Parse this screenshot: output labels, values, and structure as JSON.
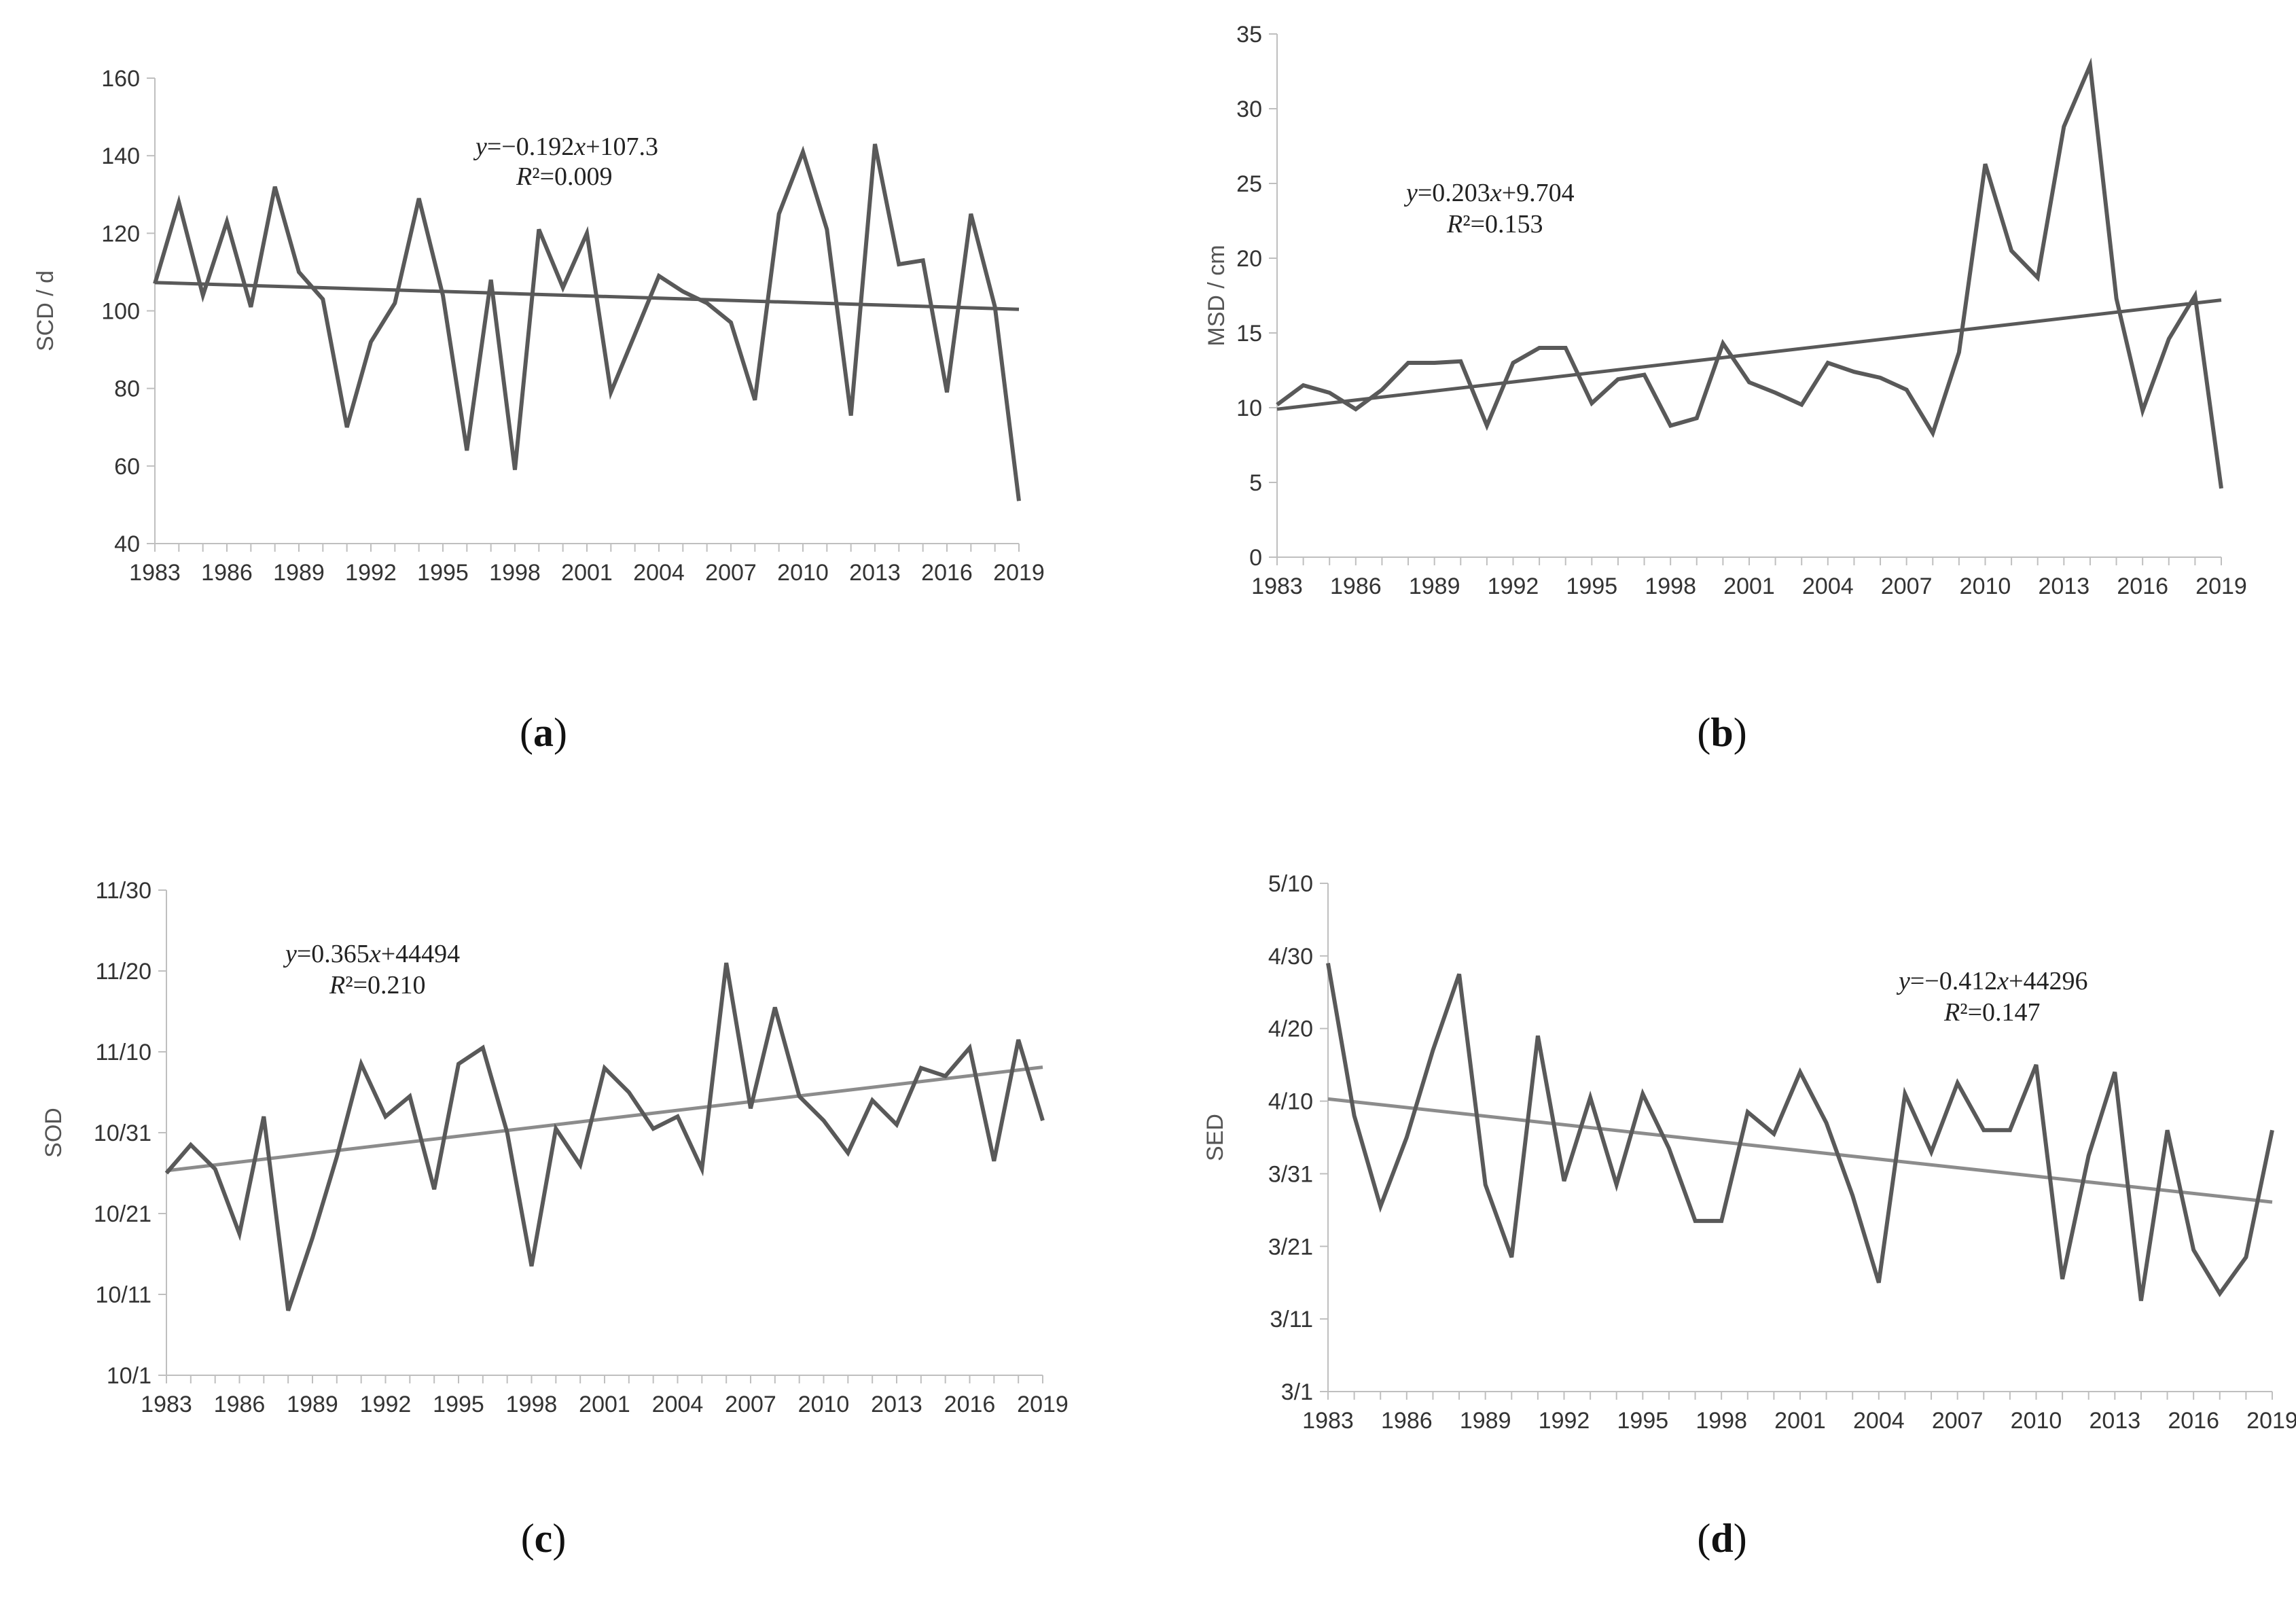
{
  "panels": [
    {
      "id": "a",
      "caption": "a",
      "chart_data": {
        "type": "line",
        "title": "",
        "xlabel": "",
        "ylabel": "SCD / d",
        "ylim": [
          40,
          160
        ],
        "yticks": [
          "40",
          "60",
          "80",
          "100",
          "120",
          "140",
          "160"
        ],
        "xticks": [
          "1983",
          "1986",
          "1989",
          "1992",
          "1995",
          "1998",
          "2001",
          "2004",
          "2007",
          "2010",
          "2013",
          "2016",
          "2019"
        ],
        "x": [
          1983,
          1984,
          1985,
          1986,
          1987,
          1988,
          1989,
          1990,
          1991,
          1992,
          1993,
          1994,
          1995,
          1996,
          1997,
          1998,
          1999,
          2000,
          2001,
          2002,
          2003,
          2004,
          2005,
          2006,
          2007,
          2008,
          2009,
          2010,
          2011,
          2012,
          2013,
          2014,
          2015,
          2016,
          2017,
          2018,
          2019
        ],
        "series": [
          {
            "name": "SCD",
            "color": "#595959",
            "values": [
              107,
              128,
              104,
              123,
              101,
              132,
              110,
              103,
              70,
              92,
              102,
              129,
              104,
              64,
              108,
              59,
              121,
              106,
              120,
              79,
              94,
              109,
              105,
              102,
              97,
              77,
              125,
              141,
              121,
              73,
              143,
              112,
              113,
              79,
              125,
              101,
              51
            ]
          },
          {
            "name": "trend",
            "color": "#595959",
            "start": 107.3,
            "end": 100.4
          }
        ],
        "equation": {
          "y": "y",
          "rhs": "=−0.192",
          "x": "x",
          "tail": "+107.3",
          "r": "R",
          "r2": "²=0.009"
        }
      }
    },
    {
      "id": "b",
      "caption": "b",
      "chart_data": {
        "type": "line",
        "title": "",
        "xlabel": "",
        "ylabel": "MSD / cm",
        "ylim": [
          0,
          35
        ],
        "yticks": [
          "0",
          "5",
          "10",
          "15",
          "20",
          "25",
          "30",
          "35"
        ],
        "xticks": [
          "1983",
          "1986",
          "1989",
          "1992",
          "1995",
          "1998",
          "2001",
          "2004",
          "2007",
          "2010",
          "2013",
          "2016",
          "2019"
        ],
        "x": [
          1983,
          1984,
          1985,
          1986,
          1987,
          1988,
          1989,
          1990,
          1991,
          1992,
          1993,
          1994,
          1995,
          1996,
          1997,
          1998,
          1999,
          2000,
          2001,
          2002,
          2003,
          2004,
          2005,
          2006,
          2007,
          2008,
          2009,
          2010,
          2011,
          2012,
          2013,
          2014,
          2015,
          2016,
          2017,
          2018,
          2019
        ],
        "series": [
          {
            "name": "MSD",
            "color": "#595959",
            "values": [
              10.2,
              11.5,
              11,
              9.9,
              11.2,
              13,
              13,
              13.1,
              8.8,
              13,
              14,
              14,
              10.3,
              11.9,
              12.2,
              8.8,
              9.3,
              14.3,
              11.7,
              11,
              10.2,
              13,
              12.4,
              12,
              11.2,
              8.3,
              13.7,
              26.3,
              20.5,
              18.7,
              28.8,
              32.9,
              17.3,
              9.8,
              14.6,
              17.5,
              4.6
            ]
          },
          {
            "name": "trend",
            "color": "#595959",
            "start": 9.9,
            "end": 17.2
          }
        ],
        "equation": {
          "y": "y",
          "rhs": "=0.203",
          "x": "x",
          "tail": "+9.704",
          "r": "R",
          "r2": "²=0.153"
        }
      }
    },
    {
      "id": "c",
      "caption": "c",
      "chart_data": {
        "type": "line",
        "title": "",
        "xlabel": "",
        "ylabel": "SOD",
        "ylim": [
          0,
          60
        ],
        "ytick_values": [
          0,
          10,
          20,
          30,
          40,
          50,
          60
        ],
        "yticks": [
          "10/1",
          "10/11",
          "10/21",
          "10/31",
          "11/10",
          "11/20",
          "11/30"
        ],
        "xticks": [
          "1983",
          "1986",
          "1989",
          "1992",
          "1995",
          "1998",
          "2001",
          "2004",
          "2007",
          "2010",
          "2013",
          "2016",
          "2019"
        ],
        "x": [
          1983,
          1984,
          1985,
          1986,
          1987,
          1988,
          1989,
          1990,
          1991,
          1992,
          1993,
          1994,
          1995,
          1996,
          1997,
          1998,
          1999,
          2000,
          2001,
          2002,
          2003,
          2004,
          2005,
          2006,
          2007,
          2008,
          2009,
          2010,
          2011,
          2012,
          2013,
          2014,
          2015,
          2016,
          2017,
          2018,
          2019
        ],
        "series": [
          {
            "name": "SOD",
            "color": "#595959",
            "values": [
              25,
              28.5,
              25.5,
              17.5,
              32,
              8,
              17,
              27,
              38.5,
              32,
              34.5,
              23,
              38.5,
              40.5,
              30,
              13.5,
              30.5,
              26,
              38,
              35,
              30.5,
              32,
              25.5,
              51,
              33,
              45.5,
              34.5,
              31.5,
              27.5,
              34,
              31,
              38,
              37,
              40.5,
              26.5,
              41.5,
              31.5
            ]
          },
          {
            "name": "trend",
            "color": "#8c8c8c",
            "start": 25.3,
            "end": 38.1
          }
        ],
        "equation": {
          "y": "y",
          "rhs": "=0.365",
          "x": "x",
          "tail": "+44494",
          "r": "R",
          "r2": "²=0.210"
        }
      }
    },
    {
      "id": "d",
      "caption": "d",
      "chart_data": {
        "type": "line",
        "title": "",
        "xlabel": "",
        "ylabel": "SED",
        "ylim": [
          0,
          70
        ],
        "ytick_values": [
          0,
          10,
          20,
          30,
          40,
          50,
          60,
          70
        ],
        "yticks": [
          "3/1",
          "3/11",
          "3/21",
          "3/31",
          "4/10",
          "4/20",
          "4/30",
          "5/10"
        ],
        "xticks": [
          "1983",
          "1986",
          "1989",
          "1992",
          "1995",
          "1998",
          "2001",
          "2004",
          "2007",
          "2010",
          "2013",
          "2016",
          "2019"
        ],
        "x": [
          1983,
          1984,
          1985,
          1986,
          1987,
          1988,
          1989,
          1990,
          1991,
          1992,
          1993,
          1994,
          1995,
          1996,
          1997,
          1998,
          1999,
          2000,
          2001,
          2002,
          2003,
          2004,
          2005,
          2006,
          2007,
          2008,
          2009,
          2010,
          2011,
          2012,
          2013,
          2014,
          2015,
          2016,
          2017,
          2018,
          2019
        ],
        "series": [
          {
            "name": "SED",
            "color": "#595959",
            "values": [
              59,
              38,
              25.5,
              35,
              47,
              57.5,
              28.5,
              18.5,
              49,
              29,
              40.5,
              28.5,
              41,
              33.5,
              23.5,
              23.5,
              38.5,
              35.5,
              44,
              37,
              27,
              15,
              41,
              33,
              42.5,
              36,
              36,
              45,
              15.5,
              32.5,
              44,
              12.5,
              36,
              19.5,
              13.5,
              18.5,
              36
            ]
          },
          {
            "name": "trend",
            "color": "#8c8c8c",
            "start": 40.3,
            "end": 26.1
          }
        ],
        "equation": {
          "y": "y",
          "rhs": "=−0.412",
          "x": "x",
          "tail": "+44296",
          "r": "R",
          "r2": "²=0.147"
        }
      }
    }
  ]
}
